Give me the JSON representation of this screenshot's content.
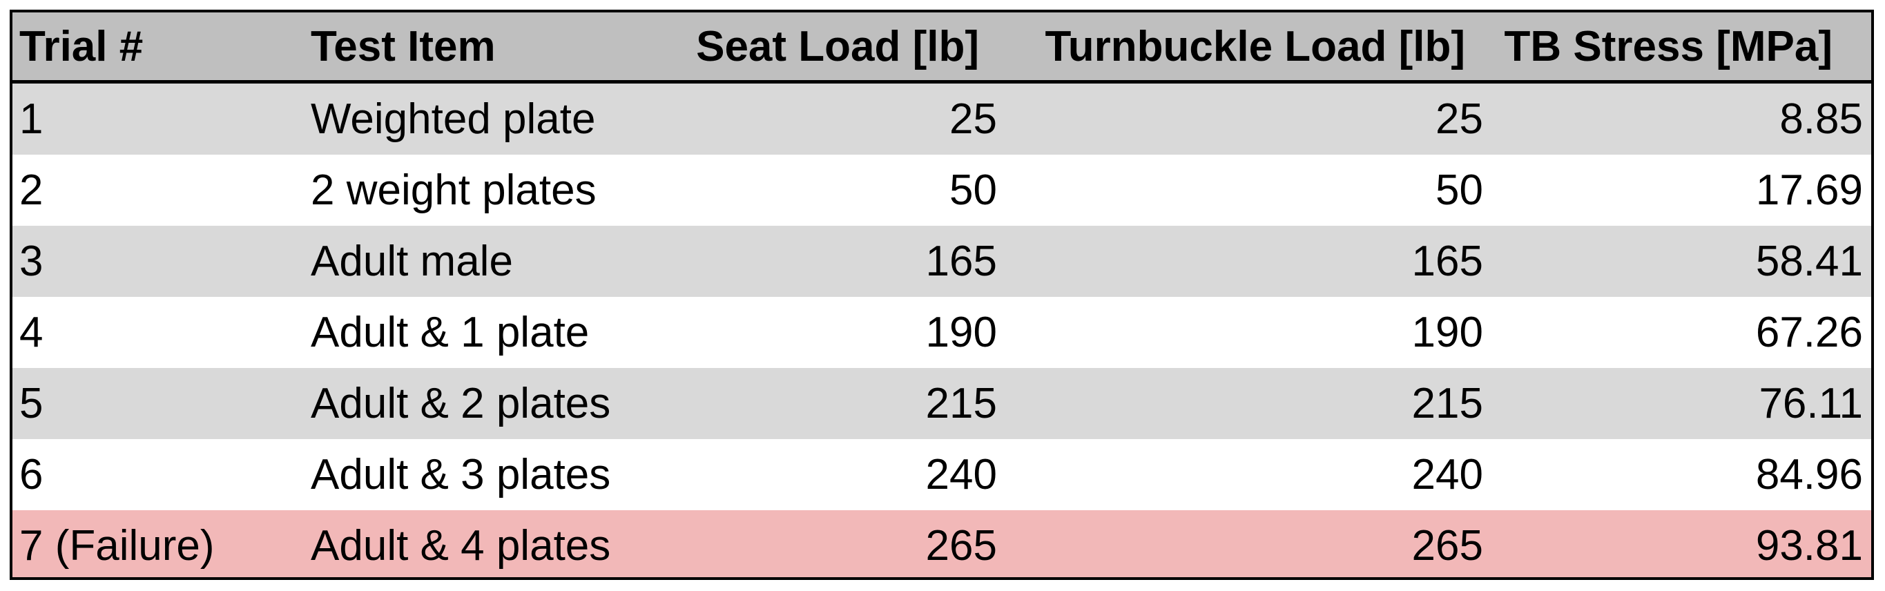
{
  "table": {
    "headers": [
      "Trial #",
      "Test Item",
      "Seat Load [lb]",
      "Turnbuckle Load [lb]",
      "TB Stress [MPa]"
    ],
    "rows": [
      {
        "trial": "1",
        "item": "Weighted plate",
        "seat_load": "25",
        "turnbuckle_load": "25",
        "tb_stress": "8.85"
      },
      {
        "trial": "2",
        "item": "2 weight plates",
        "seat_load": "50",
        "turnbuckle_load": "50",
        "tb_stress": "17.69"
      },
      {
        "trial": "3",
        "item": "Adult male",
        "seat_load": "165",
        "turnbuckle_load": "165",
        "tb_stress": "58.41"
      },
      {
        "trial": "4",
        "item": "Adult & 1 plate",
        "seat_load": "190",
        "turnbuckle_load": "190",
        "tb_stress": "67.26"
      },
      {
        "trial": "5",
        "item": "Adult & 2 plates",
        "seat_load": "215",
        "turnbuckle_load": "215",
        "tb_stress": "76.11"
      },
      {
        "trial": "6",
        "item": "Adult & 3 plates",
        "seat_load": "240",
        "turnbuckle_load": "240",
        "tb_stress": "84.96"
      },
      {
        "trial": "7 (Failure)",
        "item": "Adult & 4 plates",
        "seat_load": "265",
        "turnbuckle_load": "265",
        "tb_stress": "93.81"
      }
    ]
  },
  "colors": {
    "header_bg": "#bfbfbf",
    "shaded_row_bg": "#d9d9d9",
    "plain_row_bg": "#ffffff",
    "failure_row_bg": "#f2b8b8",
    "border": "#000000"
  }
}
